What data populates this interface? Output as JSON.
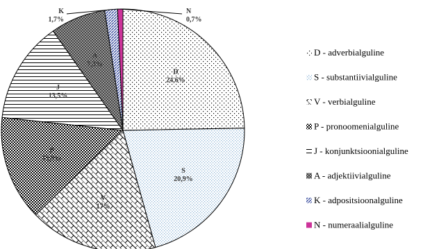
{
  "chart_data": {
    "type": "pie",
    "title": "",
    "start_angle_deg": 90,
    "direction": "clockwise",
    "legend_position": "right",
    "slices": [
      {
        "code": "D",
        "legend": "D - adverbialguline",
        "value": 24.6,
        "display": "24,6%",
        "pattern": "dots-sparse"
      },
      {
        "code": "S",
        "legend": "S - substantiivialguline",
        "value": 20.9,
        "display": "20,9%",
        "pattern": "dots-light-blue"
      },
      {
        "code": "V",
        "legend": "V - verbialguline",
        "value": 17,
        "display": "17%",
        "pattern": "brick-diagonal"
      },
      {
        "code": "P",
        "legend": "P - pronoomenialguline",
        "value": 13.9,
        "display": "13,9%",
        "pattern": "dots-dense"
      },
      {
        "code": "J",
        "legend": "J - konjunktsioonialguline",
        "value": 13.5,
        "display": "13,5%",
        "pattern": "horizontal-lines"
      },
      {
        "code": "A",
        "legend": "A - adjektiivialguline",
        "value": 7.3,
        "display": "7,3%",
        "pattern": "dark-crosshatch"
      },
      {
        "code": "K",
        "legend": "K - adpositsioonalguline",
        "value": 1.7,
        "display": "1,7%",
        "pattern": "blue-diagonal"
      },
      {
        "code": "N",
        "legend": "N - numeraalialguline",
        "value": 0.7,
        "display": "0,7%",
        "pattern": "solid-magenta"
      }
    ]
  },
  "colors": {
    "border": "#000000",
    "blue_pattern": "#8fb6d8",
    "blue_diagonal": "#3c4fa0",
    "magenta": "#cc3399",
    "dark_pattern": "#555555"
  }
}
